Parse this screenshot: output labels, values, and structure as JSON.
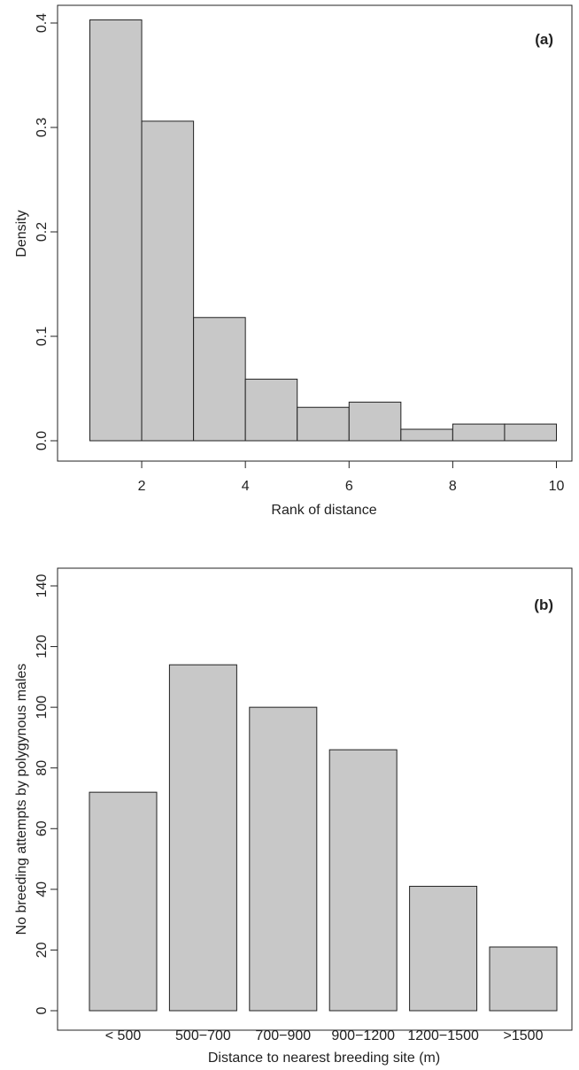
{
  "colors": {
    "bar_fill": "#c8c8c8",
    "stroke": "#222222",
    "background": "#ffffff"
  },
  "chart_data": [
    {
      "panel_label": "(a)",
      "type": "bar",
      "subtype": "histogram",
      "xlabel": "Rank of distance",
      "ylabel": "Density",
      "xlim": [
        1,
        10
      ],
      "ylim": [
        0,
        0.4
      ],
      "x_ticks": [
        "2",
        "4",
        "6",
        "8",
        "10"
      ],
      "y_ticks": [
        "0.0",
        "0.1",
        "0.2",
        "0.3",
        "0.4"
      ],
      "bins": [
        {
          "x0": 1,
          "x1": 2,
          "value": 0.403
        },
        {
          "x0": 2,
          "x1": 3,
          "value": 0.306
        },
        {
          "x0": 3,
          "x1": 4,
          "value": 0.118
        },
        {
          "x0": 4,
          "x1": 5,
          "value": 0.059
        },
        {
          "x0": 5,
          "x1": 6,
          "value": 0.032
        },
        {
          "x0": 6,
          "x1": 7,
          "value": 0.037
        },
        {
          "x0": 7,
          "x1": 8,
          "value": 0.011
        },
        {
          "x0": 8,
          "x1": 9,
          "value": 0.016
        },
        {
          "x0": 9,
          "x1": 10,
          "value": 0.016
        }
      ],
      "grid": false,
      "box": true
    },
    {
      "panel_label": "(b)",
      "type": "bar",
      "xlabel": "Distance to nearest breeding site (m)",
      "ylabel": "No breeding attempts by polygynous males",
      "ylim": [
        0,
        140
      ],
      "y_ticks": [
        "0",
        "20",
        "40",
        "60",
        "80",
        "100",
        "120",
        "140"
      ],
      "categories": [
        "< 500",
        "500−700",
        "700−900",
        "900−1200",
        "1200−1500",
        ">1500"
      ],
      "values": [
        72,
        114,
        100,
        86,
        41,
        21
      ],
      "grid": false,
      "box": true
    }
  ]
}
